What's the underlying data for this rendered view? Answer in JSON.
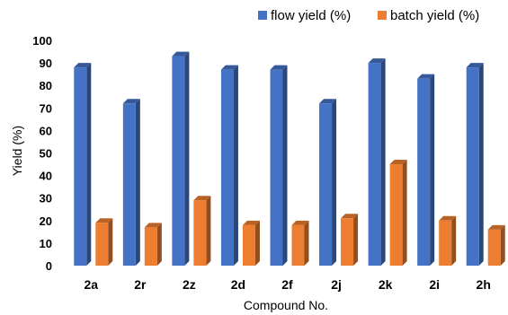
{
  "chart_data": {
    "type": "bar",
    "title": "",
    "xlabel": "Compound No.",
    "ylabel": "Yield (%)",
    "ylim": [
      0,
      100
    ],
    "yticks": [
      0,
      10,
      20,
      30,
      40,
      50,
      60,
      70,
      80,
      90,
      100
    ],
    "grid": false,
    "legend_position": "top-right",
    "categories": [
      "2a",
      "2r",
      "2z",
      "2d",
      "2f",
      "2j",
      "2k",
      "2i",
      "2h"
    ],
    "series": [
      {
        "name": "flow yield (%)",
        "color": "#4472C4",
        "values": [
          88,
          72,
          93,
          87,
          87,
          72,
          90,
          83,
          88
        ]
      },
      {
        "name": "batch yield (%)",
        "color": "#ED7D31",
        "values": [
          19,
          17,
          29,
          18,
          18,
          21,
          45,
          20,
          16
        ]
      }
    ]
  }
}
